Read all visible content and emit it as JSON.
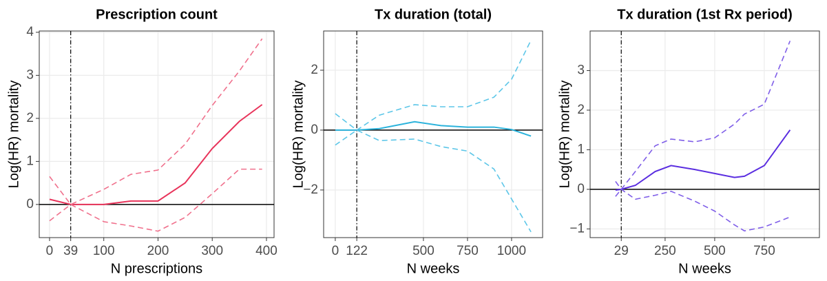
{
  "chart_data": [
    {
      "type": "line",
      "title": "Prescription count",
      "x_label": "N prescriptions",
      "y_label": "Log(HR) mortality",
      "x": [
        0,
        39,
        100,
        150,
        200,
        250,
        300,
        350,
        392
      ],
      "series": [
        {
          "color": "#e8335a",
          "linestyle": "solid",
          "values": [
            0.12,
            0,
            0,
            0.08,
            0.08,
            0.5,
            1.3,
            1.93,
            2.32
          ]
        },
        {
          "color": "#f0708c",
          "linestyle": "dashed",
          "values": [
            0.65,
            0,
            0.35,
            0.7,
            0.8,
            1.4,
            2.3,
            3.1,
            3.85
          ]
        },
        {
          "color": "#f0708c",
          "linestyle": "dashed",
          "values": [
            -0.38,
            0,
            -0.4,
            -0.5,
            -0.62,
            -0.3,
            0.25,
            0.82,
            0.82
          ]
        }
      ],
      "xlim": [
        -19,
        414
      ],
      "xticks": [
        0,
        39,
        100,
        200,
        300,
        400
      ],
      "ylim": [
        -0.77,
        4.03
      ],
      "yticks": [
        0,
        1,
        2,
        3,
        4
      ],
      "hline": 0,
      "vline": 39,
      "grid": true
    },
    {
      "type": "line",
      "title": "Tx duration (total)",
      "x_label": "N weeks",
      "y_label": "Log(HR) mortality",
      "x": [
        0,
        122,
        250,
        450,
        600,
        750,
        900,
        1000,
        1110
      ],
      "series": [
        {
          "color": "#2bb3dc",
          "linestyle": "solid",
          "values": [
            0,
            0,
            0.05,
            0.28,
            0.15,
            0.1,
            0.1,
            0.02,
            -0.2
          ]
        },
        {
          "color": "#5cc6e8",
          "linestyle": "dashed",
          "values": [
            0.55,
            0,
            0.5,
            0.85,
            0.78,
            0.78,
            1.1,
            1.7,
            3.0
          ]
        },
        {
          "color": "#5cc6e8",
          "linestyle": "dashed",
          "values": [
            -0.5,
            0,
            -0.35,
            -0.3,
            -0.55,
            -0.7,
            -1.3,
            -2.3,
            -3.4
          ]
        }
      ],
      "xlim": [
        -66,
        1176
      ],
      "xticks": [
        0,
        122,
        500,
        750,
        1000
      ],
      "ylim": [
        -3.59,
        3.31
      ],
      "yticks": [
        {
          "value": -2,
          "label": "−2"
        },
        0,
        2
      ],
      "hline": 0,
      "vline": 122,
      "grid": true
    },
    {
      "type": "line",
      "title": "Tx duration (1st Rx period)",
      "x_label": "N weeks",
      "y_label": "Log(HR) mortality",
      "x": [
        0,
        29,
        100,
        200,
        280,
        400,
        500,
        600,
        650,
        750,
        880
      ],
      "series": [
        {
          "color": "#5a2de0",
          "linestyle": "solid",
          "values": [
            -0.02,
            0,
            0.1,
            0.45,
            0.6,
            0.5,
            0.4,
            0.3,
            0.33,
            0.6,
            1.5
          ]
        },
        {
          "color": "#7f5ee8",
          "linestyle": "dashed",
          "values": [
            -0.18,
            0,
            0.45,
            1.1,
            1.27,
            1.2,
            1.3,
            1.65,
            1.9,
            2.15,
            3.75
          ]
        },
        {
          "color": "#7f5ee8",
          "linestyle": "dashed",
          "values": [
            0.2,
            0,
            -0.25,
            -0.15,
            -0.05,
            -0.3,
            -0.55,
            -0.9,
            -1.05,
            -0.95,
            -0.7
          ]
        }
      ],
      "xlim": [
        -128,
        1028
      ],
      "xticks": [
        29,
        250,
        500,
        750
      ],
      "ylim": [
        -1.22,
        4.0
      ],
      "yticks": [
        {
          "value": -1,
          "label": "−1"
        },
        0,
        1,
        2,
        3
      ],
      "hline": 0,
      "vline": 29,
      "grid": true
    }
  ]
}
